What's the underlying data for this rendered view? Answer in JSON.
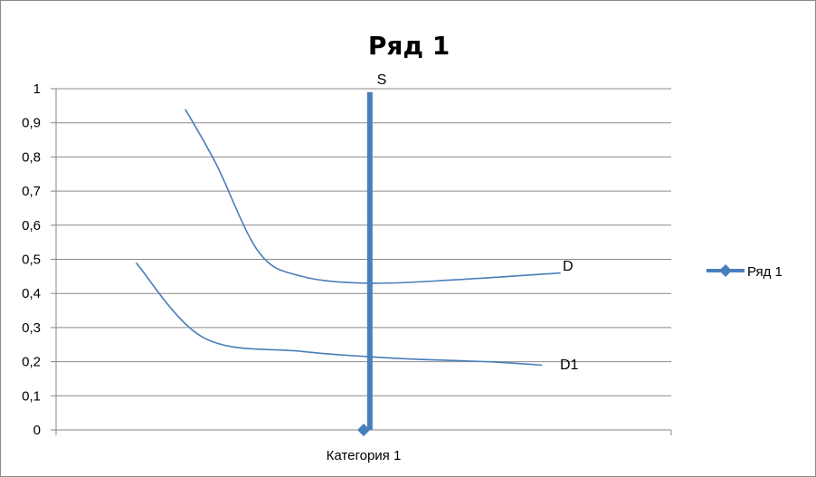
{
  "chart_data": {
    "type": "line",
    "title": "Ряд 1",
    "categories": [
      "Категория 1"
    ],
    "series": [
      {
        "name": "Ряд 1",
        "values": [
          0
        ],
        "color": "#4a7ebb"
      }
    ],
    "ylim": [
      0,
      1
    ],
    "yticks": [
      "0",
      "0,1",
      "0,2",
      "0,3",
      "0,4",
      "0,5",
      "0,6",
      "0,7",
      "0,8",
      "0,9",
      "1"
    ],
    "grid": true,
    "legend": "right",
    "annotations": {
      "S": "S",
      "D": "D",
      "D1": "D1"
    },
    "drawn_curves": {
      "D": [
        [
          0.21,
          0.94
        ],
        [
          0.26,
          0.78
        ],
        [
          0.33,
          0.52
        ],
        [
          0.4,
          0.45
        ],
        [
          0.51,
          0.43
        ],
        [
          0.65,
          0.44
        ],
        [
          0.82,
          0.46
        ]
      ],
      "D1": [
        [
          0.13,
          0.49
        ],
        [
          0.24,
          0.27
        ],
        [
          0.4,
          0.23
        ],
        [
          0.55,
          0.21
        ],
        [
          0.7,
          0.2
        ],
        [
          0.79,
          0.19
        ]
      ],
      "S": [
        [
          0.51,
          0.0
        ],
        [
          0.51,
          0.99
        ]
      ]
    }
  }
}
